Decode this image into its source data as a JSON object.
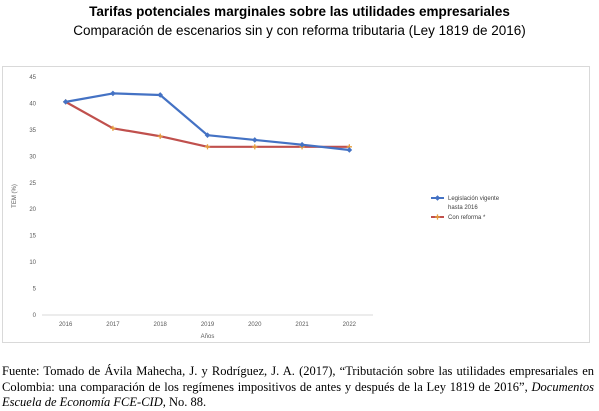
{
  "header": {
    "title": "Tarifas potenciales marginales sobre las utilidades empresariales",
    "subtitle": "Comparación de escenarios sin y con reforma tributaria (Ley 1819 de 2016)"
  },
  "chart_data": {
    "type": "line",
    "xlabel": "Años",
    "ylabel": "TEM (%)",
    "ylim": [
      0,
      45
    ],
    "yticks": [
      0,
      5,
      10,
      15,
      20,
      25,
      30,
      35,
      40,
      45
    ],
    "categories": [
      "2016",
      "2017",
      "2018",
      "2019",
      "2020",
      "2021",
      "2022"
    ],
    "grid": false,
    "legend_position": "right",
    "series": [
      {
        "name": "Legislación vigente hasta 2016",
        "legend_lines": [
          "Legislación vigente",
          "hasta 2016"
        ],
        "color": "#4472C4",
        "marker": "diamond",
        "values": [
          40.3,
          41.9,
          41.6,
          34.0,
          33.1,
          32.2,
          31.2
        ]
      },
      {
        "name": "Con reforma *",
        "legend_lines": [
          "Con reforma *"
        ],
        "color": "#C0504D",
        "marker": "plus",
        "values": [
          40.3,
          35.3,
          33.8,
          31.8,
          31.8,
          31.8,
          31.8
        ]
      }
    ]
  },
  "source": {
    "prefix": "Fuente: Tomado de Ávila Mahecha, J. y Rodríguez, J. A. (2017), “Tributación sobre las utilidades empresariales en Colombia: una comparación de los regímenes impositivos de antes y después de la Ley 1819 de 2016”, ",
    "journal": "Documentos Escuela de Economía FCE-CID",
    "suffix": ", No. 88."
  }
}
